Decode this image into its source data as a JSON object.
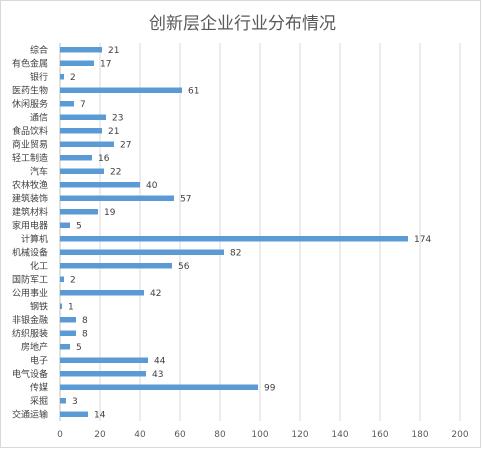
{
  "chart_data": {
    "type": "bar",
    "orientation": "horizontal",
    "title": "创新层企业行业分布情况",
    "categories": [
      "综合",
      "有色金属",
      "银行",
      "医药生物",
      "休闲服务",
      "通信",
      "食品饮料",
      "商业贸易",
      "轻工制造",
      "汽车",
      "农林牧渔",
      "建筑装饰",
      "建筑材料",
      "家用电器",
      "计算机",
      "机械设备",
      "化工",
      "国防军工",
      "公用事业",
      "钢铁",
      "非银金融",
      "纺织服装",
      "房地产",
      "电子",
      "电气设备",
      "传媒",
      "采掘",
      "交通运输"
    ],
    "values": [
      21,
      17,
      2,
      61,
      7,
      23,
      21,
      27,
      16,
      22,
      40,
      57,
      19,
      5,
      174,
      82,
      56,
      2,
      42,
      1,
      8,
      8,
      5,
      44,
      43,
      99,
      3,
      14
    ],
    "xlim": [
      0,
      200
    ],
    "xticks": [
      0,
      20,
      40,
      60,
      80,
      100,
      120,
      140,
      160,
      180,
      200
    ],
    "grid": true,
    "data_labels": true,
    "bar_color": "#5b9bd5"
  }
}
